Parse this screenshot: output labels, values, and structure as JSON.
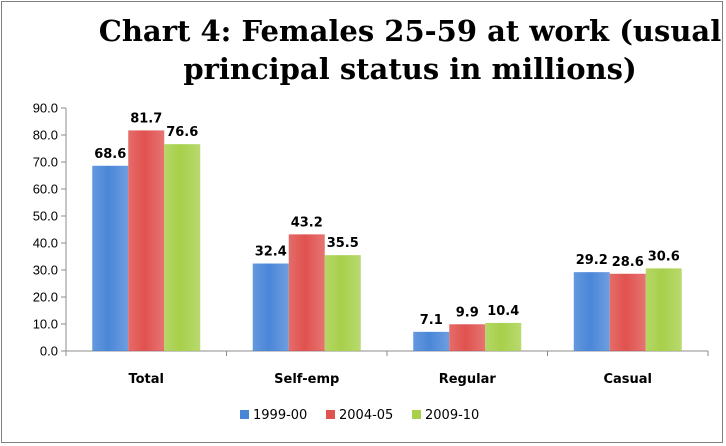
{
  "chart_data": {
    "type": "bar",
    "title_lines": [
      "Chart 4: Females 25-59 at work (usual",
      "principal status in millions)"
    ],
    "categories": [
      "Total",
      "Self-emp",
      "Regular",
      "Casual"
    ],
    "series": [
      {
        "name": "1999-00",
        "values": [
          68.6,
          32.4,
          7.1,
          29.2
        ],
        "color": "#4a86d8"
      },
      {
        "name": "2004-05",
        "values": [
          81.7,
          43.2,
          9.9,
          28.6
        ],
        "color": "#e0524f"
      },
      {
        "name": "2009-10",
        "values": [
          76.6,
          35.5,
          10.4,
          30.6
        ],
        "color": "#a7d04b"
      }
    ],
    "ylim": [
      0,
      90
    ],
    "yticks": [
      "0.0",
      "10.0",
      "20.0",
      "30.0",
      "40.0",
      "50.0",
      "60.0",
      "70.0",
      "80.0",
      "90.0"
    ],
    "grid": false,
    "legend_position": "bottom"
  }
}
